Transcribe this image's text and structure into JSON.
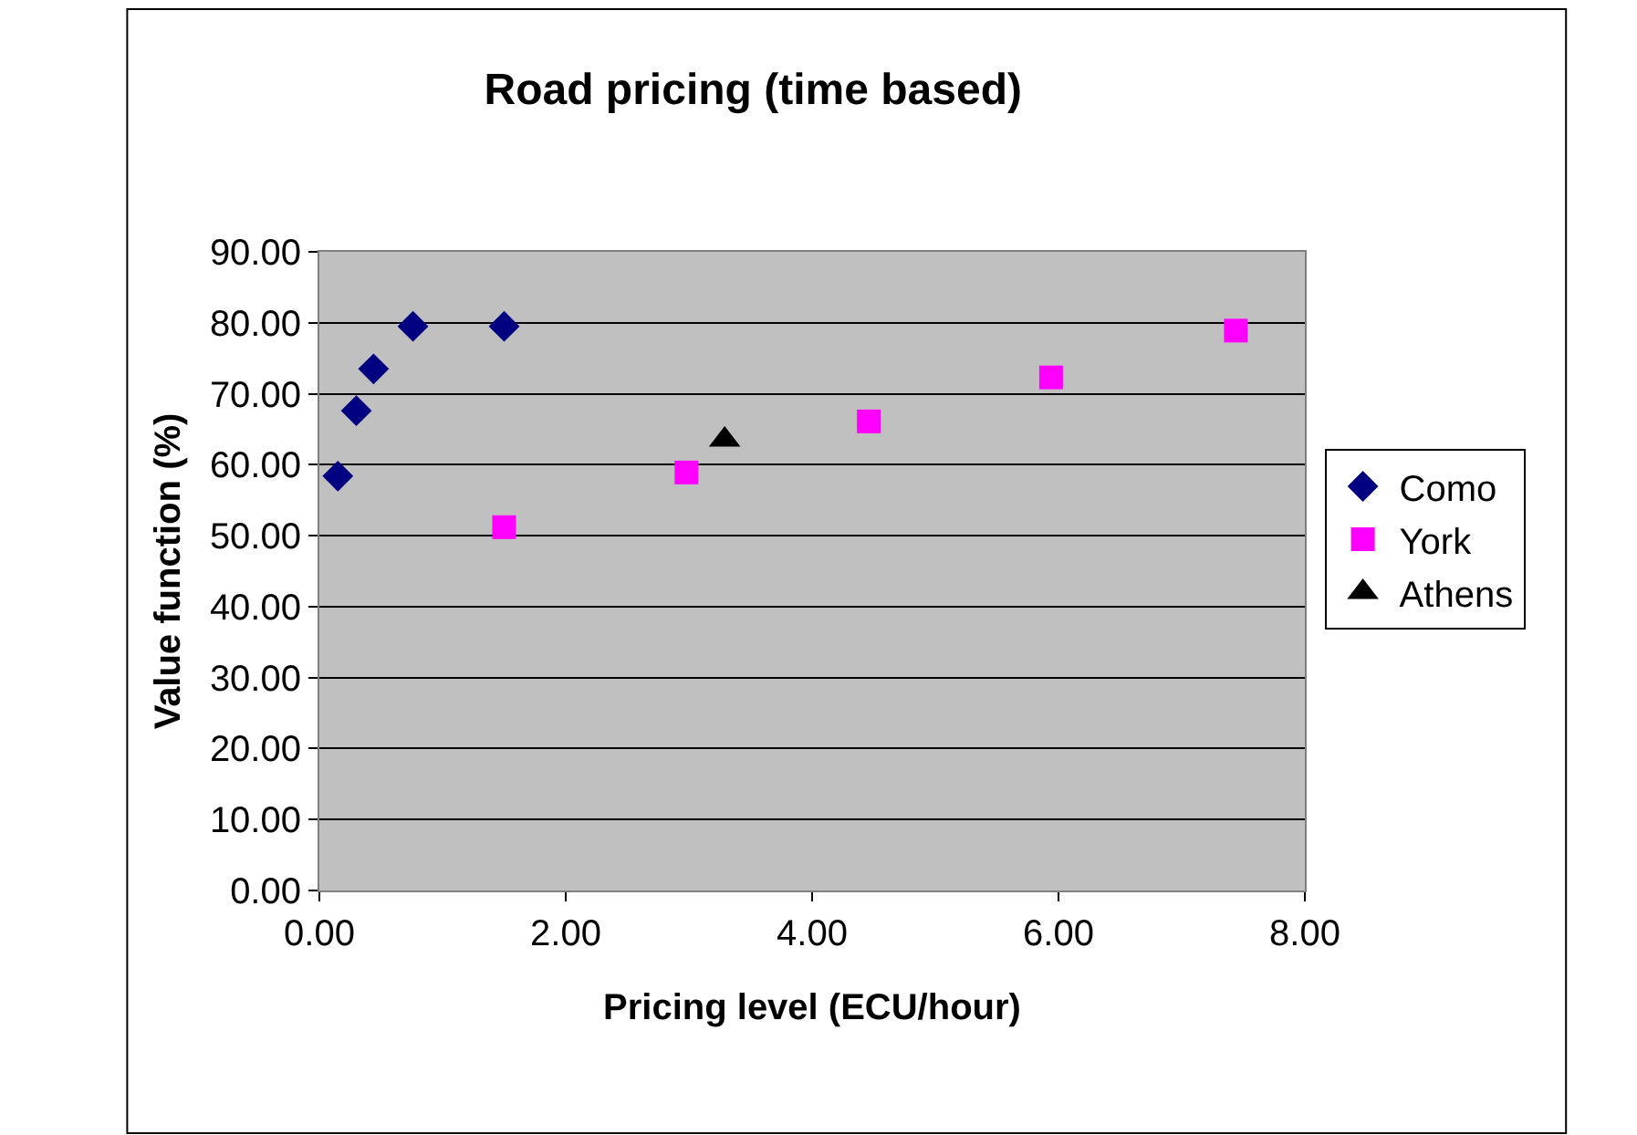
{
  "chart_data": {
    "type": "scatter",
    "title": "Road pricing (time based)",
    "xlabel": "Pricing level (ECU/hour)",
    "ylabel": "Value function (%)",
    "series": [
      {
        "name": "Como",
        "color": "#000080",
        "marker": "diamond",
        "x": [
          0.15,
          0.3,
          0.44,
          0.76,
          1.5
        ],
        "values": [
          58.4,
          67.6,
          73.5,
          79.5,
          79.5
        ]
      },
      {
        "name": "York",
        "color": "#ff00ff",
        "marker": "square",
        "x": [
          1.5,
          2.98,
          4.46,
          5.94,
          7.44
        ],
        "values": [
          51.2,
          58.9,
          66.1,
          72.3,
          78.9
        ]
      },
      {
        "name": "Athens",
        "color": "#000000",
        "marker": "triangle",
        "x": [
          3.29
        ],
        "values": [
          63.5
        ]
      }
    ],
    "xlim": [
      0,
      8
    ],
    "xticks": [
      {
        "value": 0,
        "label": "0.00"
      },
      {
        "value": 2,
        "label": "2.00"
      },
      {
        "value": 4,
        "label": "4.00"
      },
      {
        "value": 6,
        "label": "6.00"
      },
      {
        "value": 8,
        "label": "8.00"
      }
    ],
    "ylim": [
      0,
      90
    ],
    "yticks": [
      {
        "value": 0,
        "label": "0.00"
      },
      {
        "value": 10,
        "label": "10.00"
      },
      {
        "value": 20,
        "label": "20.00"
      },
      {
        "value": 30,
        "label": "30.00"
      },
      {
        "value": 40,
        "label": "40.00"
      },
      {
        "value": 50,
        "label": "50.00"
      },
      {
        "value": 60,
        "label": "60.00"
      },
      {
        "value": 70,
        "label": "70.00"
      },
      {
        "value": 80,
        "label": "80.00"
      },
      {
        "value": 90,
        "label": "90.00"
      }
    ],
    "grid": "y",
    "legend": "right"
  }
}
